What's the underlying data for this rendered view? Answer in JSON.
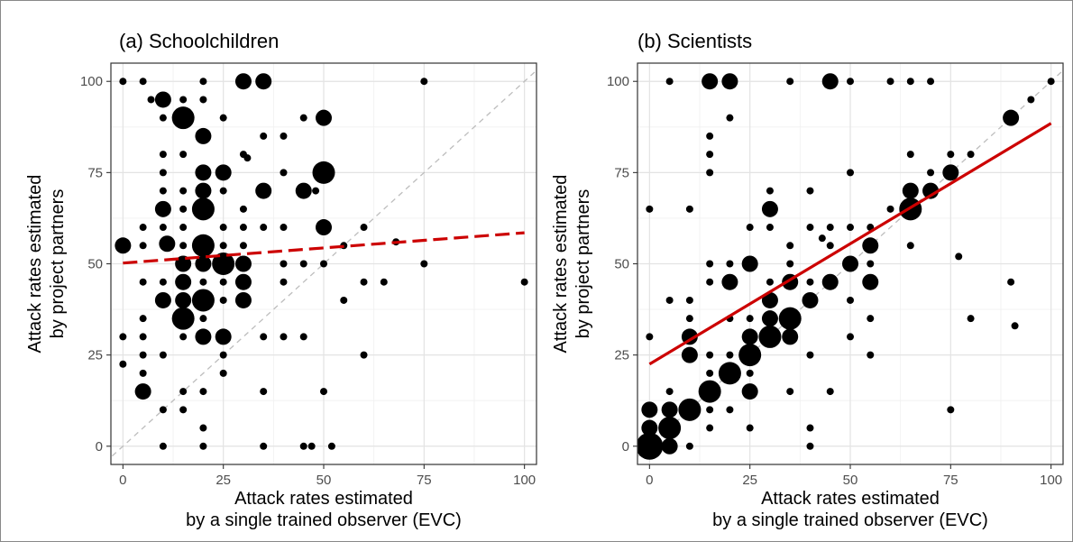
{
  "chart_data": [
    {
      "type": "scatter",
      "title": "(a) Schoolchildren",
      "xlabel_lines": [
        "Attack rates estimated",
        "by a single trained observer (EVC)"
      ],
      "ylabel_lines": [
        "Attack rates estimated",
        "by project partners"
      ],
      "xlim": [
        -3,
        103
      ],
      "ylim": [
        -5,
        105
      ],
      "xticks": [
        0,
        25,
        50,
        75,
        100
      ],
      "yticks": [
        0,
        25,
        50,
        75,
        100
      ],
      "grid": true,
      "reference_line": {
        "style": "dashed",
        "color": "#bdbdbd",
        "from": [
          0,
          0
        ],
        "to": [
          100,
          100
        ]
      },
      "fit_line": {
        "style": "dashed",
        "color": "#cc0000",
        "from": [
          0,
          50.2
        ],
        "to": [
          100,
          58.5
        ]
      },
      "points": [
        [
          0,
          100,
          1
        ],
        [
          5,
          100,
          1
        ],
        [
          20,
          100,
          1
        ],
        [
          30,
          100,
          3
        ],
        [
          35,
          100,
          3
        ],
        [
          75,
          100,
          1
        ],
        [
          7,
          95,
          1
        ],
        [
          10,
          95,
          3
        ],
        [
          15,
          95,
          1
        ],
        [
          20,
          95,
          1
        ],
        [
          10,
          90,
          1
        ],
        [
          15,
          90,
          4
        ],
        [
          25,
          90,
          1
        ],
        [
          45,
          90,
          1
        ],
        [
          50,
          90,
          3
        ],
        [
          20,
          85,
          3
        ],
        [
          35,
          85,
          1
        ],
        [
          40,
          85,
          1
        ],
        [
          10,
          80,
          1
        ],
        [
          15,
          80,
          1
        ],
        [
          30,
          80,
          1
        ],
        [
          31,
          79,
          1
        ],
        [
          10,
          75,
          1
        ],
        [
          20,
          75,
          3
        ],
        [
          25,
          75,
          3
        ],
        [
          40,
          75,
          1
        ],
        [
          50,
          75,
          4
        ],
        [
          10,
          70,
          1
        ],
        [
          15,
          70,
          1
        ],
        [
          20,
          70,
          3
        ],
        [
          25,
          70,
          1
        ],
        [
          35,
          70,
          3
        ],
        [
          45,
          70,
          3
        ],
        [
          48,
          70,
          1
        ],
        [
          10,
          65,
          3
        ],
        [
          15,
          65,
          1
        ],
        [
          20,
          65,
          4
        ],
        [
          30,
          65,
          1
        ],
        [
          5,
          60,
          1
        ],
        [
          10,
          60,
          1
        ],
        [
          15,
          60,
          1
        ],
        [
          25,
          60,
          1
        ],
        [
          30,
          60,
          1
        ],
        [
          35,
          60,
          1
        ],
        [
          40,
          60,
          1
        ],
        [
          50,
          60,
          3
        ],
        [
          60,
          60,
          1
        ],
        [
          0,
          55,
          3
        ],
        [
          5,
          55,
          1
        ],
        [
          11,
          55.5,
          3
        ],
        [
          15,
          55,
          1
        ],
        [
          20,
          55,
          4
        ],
        [
          25,
          55,
          1
        ],
        [
          30,
          55,
          1
        ],
        [
          55,
          55,
          1
        ],
        [
          68,
          56,
          1
        ],
        [
          15,
          50,
          3
        ],
        [
          20,
          50,
          3
        ],
        [
          25,
          50,
          4
        ],
        [
          30,
          50,
          3
        ],
        [
          40,
          50,
          1
        ],
        [
          45,
          50,
          1
        ],
        [
          50,
          50,
          1
        ],
        [
          75,
          50,
          1
        ],
        [
          5,
          45,
          1
        ],
        [
          10,
          45,
          1
        ],
        [
          15,
          45,
          3
        ],
        [
          20,
          45,
          1
        ],
        [
          25,
          45,
          1
        ],
        [
          30,
          45,
          3
        ],
        [
          40,
          45,
          1
        ],
        [
          60,
          45,
          1
        ],
        [
          65,
          45,
          1
        ],
        [
          100,
          45,
          1
        ],
        [
          10,
          40,
          3
        ],
        [
          15,
          40,
          3
        ],
        [
          20,
          40,
          4
        ],
        [
          25,
          40,
          1
        ],
        [
          30,
          40,
          3
        ],
        [
          55,
          40,
          1
        ],
        [
          5,
          35,
          1
        ],
        [
          15,
          35,
          4
        ],
        [
          20,
          35,
          1
        ],
        [
          0,
          30,
          1
        ],
        [
          5,
          30,
          1
        ],
        [
          15,
          30,
          1
        ],
        [
          20,
          30,
          3
        ],
        [
          25,
          30,
          3
        ],
        [
          35,
          30,
          1
        ],
        [
          40,
          30,
          1
        ],
        [
          45,
          30,
          1
        ],
        [
          5,
          25,
          1
        ],
        [
          10,
          25,
          1
        ],
        [
          25,
          25,
          1
        ],
        [
          60,
          25,
          1
        ],
        [
          0,
          22.5,
          1
        ],
        [
          5,
          20,
          1
        ],
        [
          25,
          20,
          1
        ],
        [
          5,
          15,
          3
        ],
        [
          15,
          15,
          1
        ],
        [
          20,
          15,
          1
        ],
        [
          35,
          15,
          1
        ],
        [
          50,
          15,
          1
        ],
        [
          10,
          10,
          1
        ],
        [
          15,
          10,
          1
        ],
        [
          20,
          5,
          1
        ],
        [
          10,
          0,
          1
        ],
        [
          20,
          0,
          1
        ],
        [
          35,
          0,
          1
        ],
        [
          45,
          0,
          1
        ],
        [
          47,
          0,
          1
        ],
        [
          52,
          0,
          1
        ]
      ]
    },
    {
      "type": "scatter",
      "title": "(b) Scientists",
      "xlabel_lines": [
        "Attack rates estimated",
        "by a single trained observer (EVC)"
      ],
      "ylabel_lines": [
        "Attack rates estimated",
        "by project partners"
      ],
      "xlim": [
        -3,
        103
      ],
      "ylim": [
        -5,
        105
      ],
      "xticks": [
        0,
        25,
        50,
        75,
        100
      ],
      "yticks": [
        0,
        25,
        50,
        75,
        100
      ],
      "grid": true,
      "reference_line": {
        "style": "dashed",
        "color": "#bdbdbd",
        "from": [
          0,
          0
        ],
        "to": [
          100,
          100
        ]
      },
      "fit_line": {
        "style": "solid",
        "color": "#cc0000",
        "from": [
          0,
          22.5
        ],
        "to": [
          100,
          88.5
        ]
      },
      "points": [
        [
          5,
          100,
          1
        ],
        [
          15,
          100,
          3
        ],
        [
          20,
          100,
          3
        ],
        [
          35,
          100,
          1
        ],
        [
          45,
          100,
          3
        ],
        [
          50,
          100,
          1
        ],
        [
          60,
          100,
          1
        ],
        [
          65,
          100,
          1
        ],
        [
          70,
          100,
          1
        ],
        [
          100,
          100,
          1
        ],
        [
          95,
          95,
          1
        ],
        [
          20,
          90,
          1
        ],
        [
          90,
          90,
          3
        ],
        [
          15,
          85,
          1
        ],
        [
          15,
          80,
          1
        ],
        [
          65,
          80,
          1
        ],
        [
          75,
          80,
          1
        ],
        [
          80,
          80,
          1
        ],
        [
          15,
          75,
          1
        ],
        [
          50,
          75,
          1
        ],
        [
          70,
          75,
          1
        ],
        [
          75,
          75,
          3
        ],
        [
          30,
          70,
          1
        ],
        [
          40,
          70,
          1
        ],
        [
          65,
          70,
          3
        ],
        [
          70,
          70,
          3
        ],
        [
          0,
          65,
          1
        ],
        [
          10,
          65,
          1
        ],
        [
          30,
          65,
          3
        ],
        [
          60,
          65,
          1
        ],
        [
          65,
          65,
          4
        ],
        [
          25,
          60,
          1
        ],
        [
          30,
          60,
          1
        ],
        [
          40,
          60,
          1
        ],
        [
          45,
          60,
          1
        ],
        [
          50,
          60,
          1
        ],
        [
          55,
          60,
          1
        ],
        [
          43,
          57,
          1
        ],
        [
          35,
          55,
          1
        ],
        [
          45,
          55,
          1
        ],
        [
          55,
          55,
          3
        ],
        [
          65,
          55,
          1
        ],
        [
          77,
          52,
          1
        ],
        [
          15,
          50,
          1
        ],
        [
          20,
          50,
          1
        ],
        [
          25,
          50,
          3
        ],
        [
          35,
          50,
          1
        ],
        [
          50,
          50,
          3
        ],
        [
          55,
          50,
          1
        ],
        [
          15,
          45,
          1
        ],
        [
          20,
          45,
          3
        ],
        [
          30,
          45,
          1
        ],
        [
          35,
          45,
          3
        ],
        [
          40,
          45,
          1
        ],
        [
          45,
          45,
          3
        ],
        [
          55,
          45,
          3
        ],
        [
          90,
          45,
          1
        ],
        [
          5,
          40,
          1
        ],
        [
          10,
          40,
          1
        ],
        [
          30,
          40,
          3
        ],
        [
          40,
          40,
          3
        ],
        [
          50,
          40,
          1
        ],
        [
          10,
          35,
          1
        ],
        [
          20,
          35,
          1
        ],
        [
          25,
          35,
          1
        ],
        [
          30,
          35,
          3
        ],
        [
          35,
          35,
          4
        ],
        [
          55,
          35,
          1
        ],
        [
          80,
          35,
          1
        ],
        [
          91,
          33,
          1
        ],
        [
          0,
          30,
          1
        ],
        [
          10,
          30,
          3
        ],
        [
          25,
          30,
          3
        ],
        [
          30,
          30,
          4
        ],
        [
          35,
          30,
          3
        ],
        [
          50,
          30,
          1
        ],
        [
          10,
          25,
          3
        ],
        [
          15,
          25,
          1
        ],
        [
          20,
          25,
          1
        ],
        [
          25,
          25,
          4
        ],
        [
          40,
          25,
          1
        ],
        [
          55,
          25,
          1
        ],
        [
          15,
          20,
          1
        ],
        [
          20,
          20,
          4
        ],
        [
          25,
          20,
          1
        ],
        [
          5,
          15,
          1
        ],
        [
          15,
          15,
          4
        ],
        [
          25,
          15,
          3
        ],
        [
          35,
          15,
          1
        ],
        [
          45,
          15,
          1
        ],
        [
          0,
          10,
          3
        ],
        [
          5,
          10,
          3
        ],
        [
          10,
          10,
          4
        ],
        [
          15,
          10,
          1
        ],
        [
          20,
          10,
          1
        ],
        [
          75,
          10,
          1
        ],
        [
          0,
          5,
          3
        ],
        [
          5,
          5,
          4
        ],
        [
          15,
          5,
          1
        ],
        [
          25,
          5,
          1
        ],
        [
          40,
          5,
          1
        ],
        [
          0,
          0,
          5
        ],
        [
          5,
          0,
          3
        ],
        [
          10,
          0,
          1
        ],
        [
          40,
          0,
          1
        ]
      ]
    }
  ]
}
